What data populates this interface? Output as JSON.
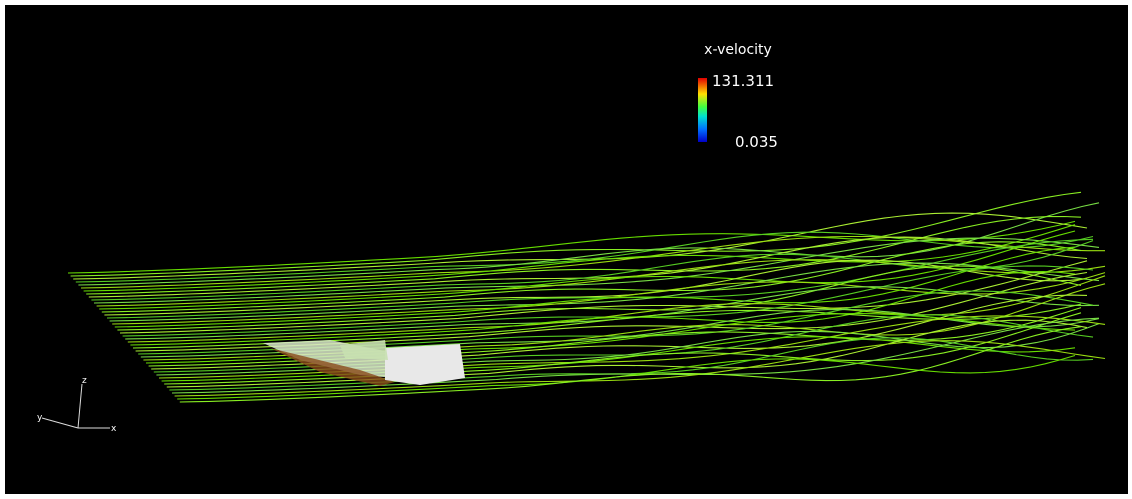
{
  "legend": {
    "title": "x-velocity",
    "max": 131.311,
    "min": 0.035
  },
  "axes_triad": {
    "z": "z",
    "y": "y",
    "x": "x"
  }
}
